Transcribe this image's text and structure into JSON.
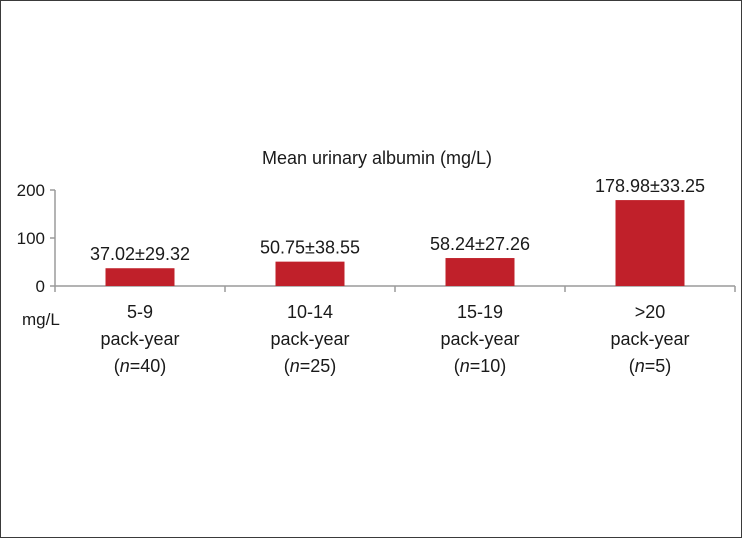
{
  "chart_data": {
    "type": "bar",
    "title": "Mean urinary albumin (mg/L)",
    "unit_label": "mg/L",
    "bar_color": "#c0202a",
    "ylim": [
      0,
      200
    ],
    "y_ticks": [
      "0",
      "100",
      "200"
    ],
    "grid": false,
    "categories": [
      {
        "line1": "5-9",
        "line2": "pack-year",
        "n_prefix": "(",
        "n_italic": "n",
        "n_rest": "=40)"
      },
      {
        "line1": "10-14",
        "line2": "pack-year",
        "n_prefix": "(",
        "n_italic": "n",
        "n_rest": "=25)"
      },
      {
        "line1": "15-19",
        "line2": "pack-year",
        "n_prefix": "(",
        "n_italic": "n",
        "n_rest": "=10)"
      },
      {
        "line1": ">20",
        "line2": "pack-year",
        "n_prefix": "(",
        "n_italic": "n",
        "n_rest": "=5)"
      }
    ],
    "values": [
      37.02,
      50.75,
      58.24,
      178.98
    ],
    "data_labels": [
      "37.02±29.32",
      "50.75±38.55",
      "58.24±27.26",
      "178.98±33.25"
    ]
  }
}
